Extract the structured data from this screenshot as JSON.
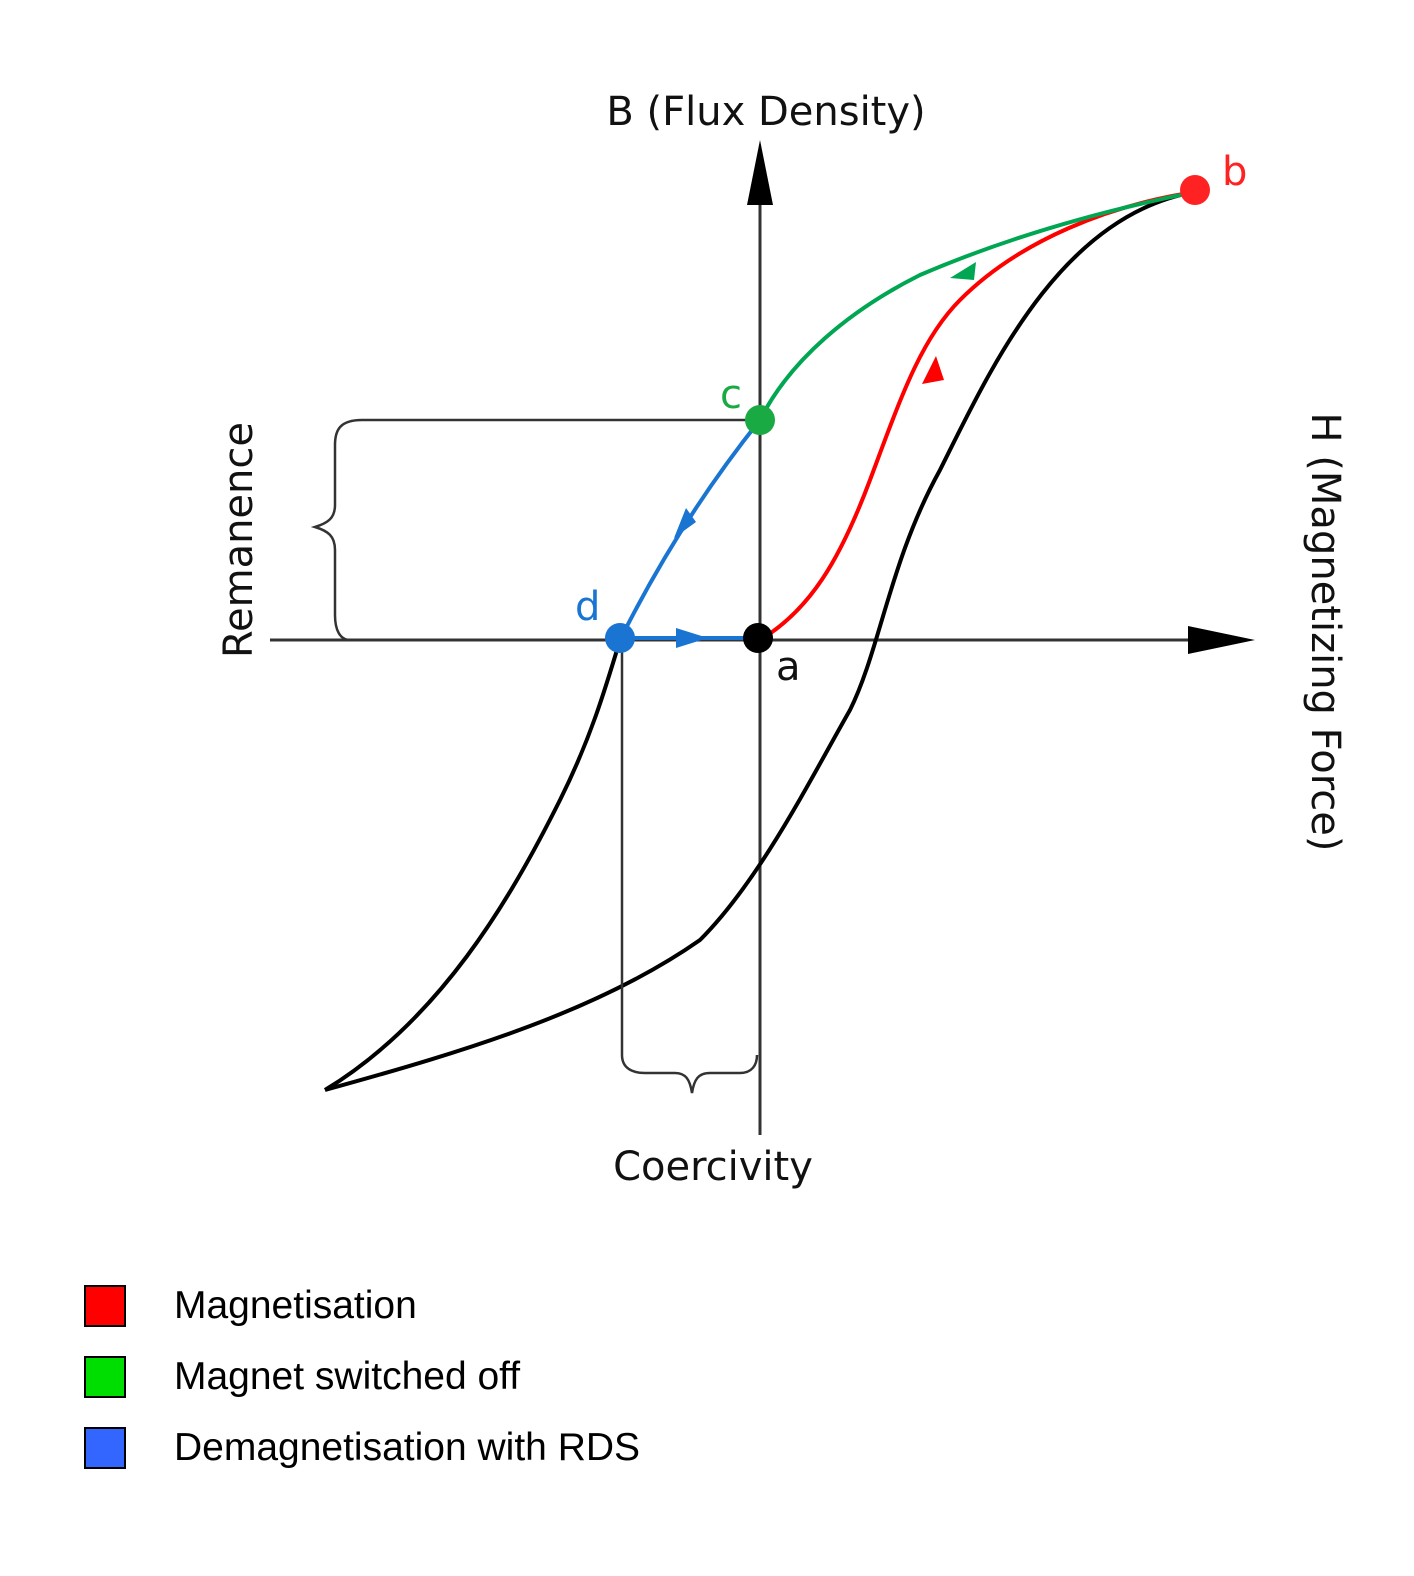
{
  "diagram": {
    "b_axis_label": "B (Flux Density)",
    "h_axis_label": "H (Magnetizing Force)",
    "remanence_label": "Remanence",
    "coercivity_label": "Coercivity",
    "points": {
      "a": "a",
      "b": "b",
      "c": "c",
      "d": "d"
    },
    "colors": {
      "magnetisation": "#ff0000",
      "switched_off": "#00a651",
      "demagnetisation": "#1a75d2",
      "axis": "#333333",
      "hysteresis_loop": "#000000"
    }
  },
  "legend": {
    "items": [
      {
        "label": "Magnetisation",
        "color": "#ff0000"
      },
      {
        "label": "Magnet switched off",
        "color": "#00dd00"
      },
      {
        "label": "Demagnetisation with RDS",
        "color": "#3366ff"
      }
    ]
  }
}
